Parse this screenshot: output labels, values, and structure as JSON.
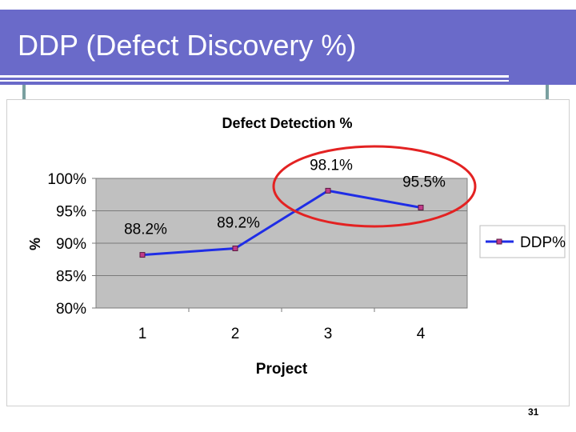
{
  "slide": {
    "title": "DDP (Defect Discovery %)",
    "page_number": "31"
  },
  "chart_data": {
    "type": "line",
    "title": "Defect Detection %",
    "xlabel": "Project",
    "ylabel": "%",
    "categories": [
      "1",
      "2",
      "3",
      "4"
    ],
    "y_ticks": [
      "100%",
      "95%",
      "90%",
      "85%",
      "80%"
    ],
    "ylim": [
      80,
      100
    ],
    "series": [
      {
        "name": "DDP%",
        "values": [
          88.2,
          89.2,
          98.1,
          95.5
        ],
        "labels": [
          "88.2%",
          "89.2%",
          "98.1%",
          "95.5%"
        ],
        "color": "#1f2de6"
      }
    ],
    "grid": true,
    "legend": "right",
    "plot_background": "#c0c0c0",
    "highlight_color": "#e32222"
  }
}
